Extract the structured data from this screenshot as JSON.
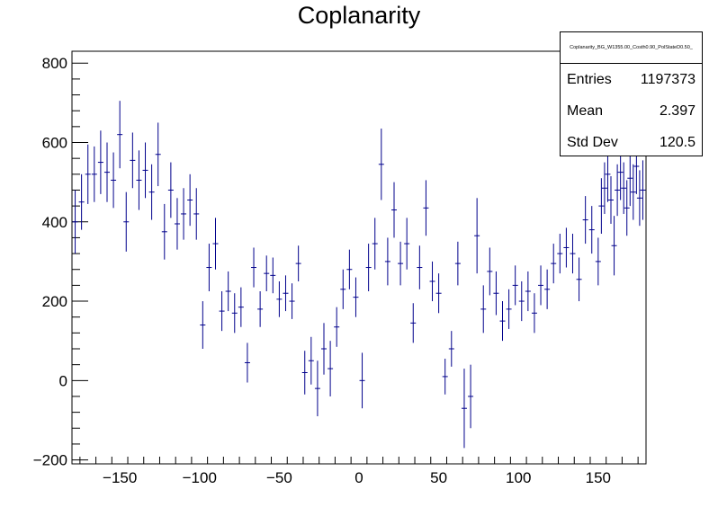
{
  "chart_data": {
    "type": "scatter",
    "title": "Coplanarity",
    "xlabel": "",
    "ylabel": "",
    "xlim": [
      -180,
      180
    ],
    "ylim": [
      -210,
      830
    ],
    "x_ticks": [
      -150,
      -100,
      -50,
      0,
      50,
      100,
      150
    ],
    "x_tick_labels": [
      "−150",
      "−100",
      "−50",
      "0",
      "50",
      "100",
      "150"
    ],
    "y_ticks": [
      -200,
      0,
      200,
      400,
      600,
      800
    ],
    "y_tick_labels": [
      "−200",
      "0",
      "200",
      "400",
      "600",
      "800"
    ],
    "grid": false,
    "series": [
      {
        "color": "#00008b",
        "points": [
          {
            "x": -178,
            "y": 400,
            "err": 80
          },
          {
            "x": -174,
            "y": 450,
            "err": 70
          },
          {
            "x": -170,
            "y": 520,
            "err": 75
          },
          {
            "x": -166,
            "y": 520,
            "err": 70
          },
          {
            "x": -162,
            "y": 550,
            "err": 80
          },
          {
            "x": -158,
            "y": 525,
            "err": 75
          },
          {
            "x": -154,
            "y": 505,
            "err": 70
          },
          {
            "x": -150,
            "y": 620,
            "err": 85
          },
          {
            "x": -146,
            "y": 400,
            "err": 75
          },
          {
            "x": -142,
            "y": 555,
            "err": 70
          },
          {
            "x": -138,
            "y": 505,
            "err": 75
          },
          {
            "x": -134,
            "y": 530,
            "err": 70
          },
          {
            "x": -130,
            "y": 475,
            "err": 70
          },
          {
            "x": -126,
            "y": 570,
            "err": 80
          },
          {
            "x": -122,
            "y": 375,
            "err": 70
          },
          {
            "x": -118,
            "y": 480,
            "err": 70
          },
          {
            "x": -114,
            "y": 395,
            "err": 65
          },
          {
            "x": -110,
            "y": 420,
            "err": 65
          },
          {
            "x": -106,
            "y": 455,
            "err": 65
          },
          {
            "x": -102,
            "y": 420,
            "err": 65
          },
          {
            "x": -98,
            "y": 140,
            "err": 60
          },
          {
            "x": -94,
            "y": 285,
            "err": 60
          },
          {
            "x": -90,
            "y": 345,
            "err": 65
          },
          {
            "x": -86,
            "y": 175,
            "err": 50
          },
          {
            "x": -82,
            "y": 225,
            "err": 50
          },
          {
            "x": -78,
            "y": 170,
            "err": 50
          },
          {
            "x": -74,
            "y": 185,
            "err": 50
          },
          {
            "x": -70,
            "y": 45,
            "err": 50
          },
          {
            "x": -66,
            "y": 285,
            "err": 50
          },
          {
            "x": -62,
            "y": 180,
            "err": 45
          },
          {
            "x": -58,
            "y": 270,
            "err": 45
          },
          {
            "x": -54,
            "y": 265,
            "err": 45
          },
          {
            "x": -50,
            "y": 205,
            "err": 45
          },
          {
            "x": -46,
            "y": 220,
            "err": 45
          },
          {
            "x": -42,
            "y": 200,
            "err": 45
          },
          {
            "x": -38,
            "y": 295,
            "err": 45
          },
          {
            "x": -34,
            "y": 20,
            "err": 55
          },
          {
            "x": -30,
            "y": 50,
            "err": 60
          },
          {
            "x": -26,
            "y": -20,
            "err": 70
          },
          {
            "x": -22,
            "y": 80,
            "err": 65
          },
          {
            "x": -18,
            "y": 30,
            "err": 70
          },
          {
            "x": -14,
            "y": 135,
            "err": 50
          },
          {
            "x": -10,
            "y": 230,
            "err": 50
          },
          {
            "x": -6,
            "y": 280,
            "err": 50
          },
          {
            "x": -2,
            "y": 210,
            "err": 50
          },
          {
            "x": 2,
            "y": 0,
            "err": 70
          },
          {
            "x": 6,
            "y": 285,
            "err": 60
          },
          {
            "x": 10,
            "y": 345,
            "err": 65
          },
          {
            "x": 14,
            "y": 545,
            "err": 90
          },
          {
            "x": 18,
            "y": 300,
            "err": 60
          },
          {
            "x": 22,
            "y": 430,
            "err": 70
          },
          {
            "x": 26,
            "y": 295,
            "err": 55
          },
          {
            "x": 30,
            "y": 345,
            "err": 65
          },
          {
            "x": 34,
            "y": 145,
            "err": 50
          },
          {
            "x": 38,
            "y": 285,
            "err": 55
          },
          {
            "x": 42,
            "y": 435,
            "err": 70
          },
          {
            "x": 46,
            "y": 250,
            "err": 50
          },
          {
            "x": 50,
            "y": 220,
            "err": 50
          },
          {
            "x": 54,
            "y": 10,
            "err": 45
          },
          {
            "x": 58,
            "y": 80,
            "err": 45
          },
          {
            "x": 62,
            "y": 295,
            "err": 55
          },
          {
            "x": 66,
            "y": -70,
            "err": 100
          },
          {
            "x": 70,
            "y": -40,
            "err": 80
          },
          {
            "x": 74,
            "y": 365,
            "err": 95
          },
          {
            "x": 78,
            "y": 180,
            "err": 60
          },
          {
            "x": 82,
            "y": 275,
            "err": 60
          },
          {
            "x": 86,
            "y": 220,
            "err": 55
          },
          {
            "x": 90,
            "y": 150,
            "err": 50
          },
          {
            "x": 94,
            "y": 180,
            "err": 50
          },
          {
            "x": 98,
            "y": 240,
            "err": 50
          },
          {
            "x": 102,
            "y": 200,
            "err": 50
          },
          {
            "x": 106,
            "y": 225,
            "err": 50
          },
          {
            "x": 110,
            "y": 170,
            "err": 50
          },
          {
            "x": 114,
            "y": 240,
            "err": 50
          },
          {
            "x": 118,
            "y": 230,
            "err": 50
          },
          {
            "x": 122,
            "y": 295,
            "err": 50
          },
          {
            "x": 126,
            "y": 320,
            "err": 50
          },
          {
            "x": 130,
            "y": 335,
            "err": 50
          },
          {
            "x": 134,
            "y": 320,
            "err": 50
          },
          {
            "x": 138,
            "y": 255,
            "err": 55
          },
          {
            "x": 142,
            "y": 405,
            "err": 60
          },
          {
            "x": 146,
            "y": 380,
            "err": 60
          },
          {
            "x": 150,
            "y": 300,
            "err": 60
          },
          {
            "x": 154,
            "y": 485,
            "err": 65
          },
          {
            "x": 158,
            "y": 455,
            "err": 60
          },
          {
            "x": 162,
            "y": 480,
            "err": 65
          },
          {
            "x": 166,
            "y": 485,
            "err": 65
          },
          {
            "x": 170,
            "y": 510,
            "err": 70
          },
          {
            "x": 174,
            "y": 540,
            "err": 70
          },
          {
            "x": 178,
            "y": 480,
            "err": 75
          },
          {
            "x": 152,
            "y": 440,
            "err": 70
          },
          {
            "x": 156,
            "y": 520,
            "err": 70
          },
          {
            "x": 160,
            "y": 340,
            "err": 75
          },
          {
            "x": 164,
            "y": 525,
            "err": 70
          },
          {
            "x": 168,
            "y": 435,
            "err": 70
          },
          {
            "x": 172,
            "y": 475,
            "err": 70
          },
          {
            "x": 176,
            "y": 460,
            "err": 70
          }
        ]
      }
    ]
  },
  "statbox": {
    "name": "Coplanarity_BG_W1355.00_Costh0.90_PolStateD0.50_",
    "entries_label": "Entries",
    "entries_value": "1197373",
    "mean_label": "Mean",
    "mean_value": "2.397",
    "stddev_label": "Std Dev",
    "stddev_value": "120.5"
  },
  "colors": {
    "marker": "#00008b",
    "axis": "#000000"
  }
}
